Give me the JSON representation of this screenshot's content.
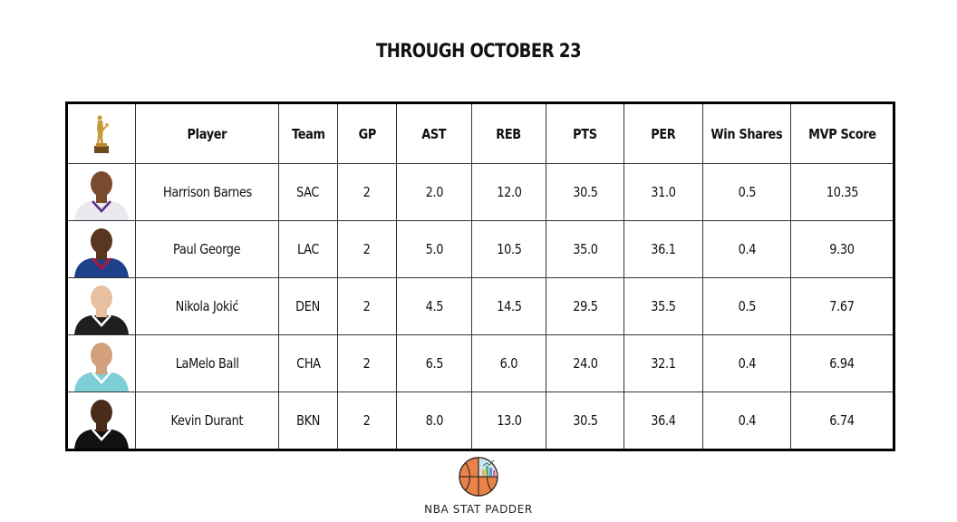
{
  "header": {
    "title": "THROUGH OCTOBER 23"
  },
  "table": {
    "columns": [
      "Player",
      "Team",
      "GP",
      "AST",
      "REB",
      "PTS",
      "PER",
      "Win Shares",
      "MVP Score"
    ],
    "header_icon": "mvp-trophy-icon",
    "rows": [
      {
        "player": "Harrison Barnes",
        "team": "SAC",
        "gp": "2",
        "ast": "2.0",
        "reb": "12.0",
        "pts": "30.5",
        "per": "31.0",
        "ws": "0.5",
        "mvp": "10.35",
        "jersey_color": "#e9e9ef",
        "jersey_trim": "#5a2d81"
      },
      {
        "player": "Paul George",
        "team": "LAC",
        "gp": "2",
        "ast": "5.0",
        "reb": "10.5",
        "pts": "35.0",
        "per": "36.1",
        "ws": "0.4",
        "mvp": "9.30",
        "jersey_color": "#1d428a",
        "jersey_trim": "#c8102e"
      },
      {
        "player": "Nikola Jokić",
        "team": "DEN",
        "gp": "2",
        "ast": "4.5",
        "reb": "14.5",
        "pts": "29.5",
        "per": "35.5",
        "ws": "0.5",
        "mvp": "7.67",
        "jersey_color": "#1f1f1f",
        "jersey_trim": "#ffffff"
      },
      {
        "player": "LaMelo Ball",
        "team": "CHA",
        "gp": "2",
        "ast": "6.5",
        "reb": "6.0",
        "pts": "24.0",
        "per": "32.1",
        "ws": "0.4",
        "mvp": "6.94",
        "jersey_color": "#7ccfd6",
        "jersey_trim": "#ffffff"
      },
      {
        "player": "Kevin Durant",
        "team": "BKN",
        "gp": "2",
        "ast": "8.0",
        "reb": "13.0",
        "pts": "30.5",
        "per": "36.4",
        "ws": "0.4",
        "mvp": "6.74",
        "jersey_color": "#111111",
        "jersey_trim": "#ffffff"
      }
    ]
  },
  "footer": {
    "brand": "NBA STAT PADDER",
    "logo_icon": "basketball-chart-logo"
  }
}
